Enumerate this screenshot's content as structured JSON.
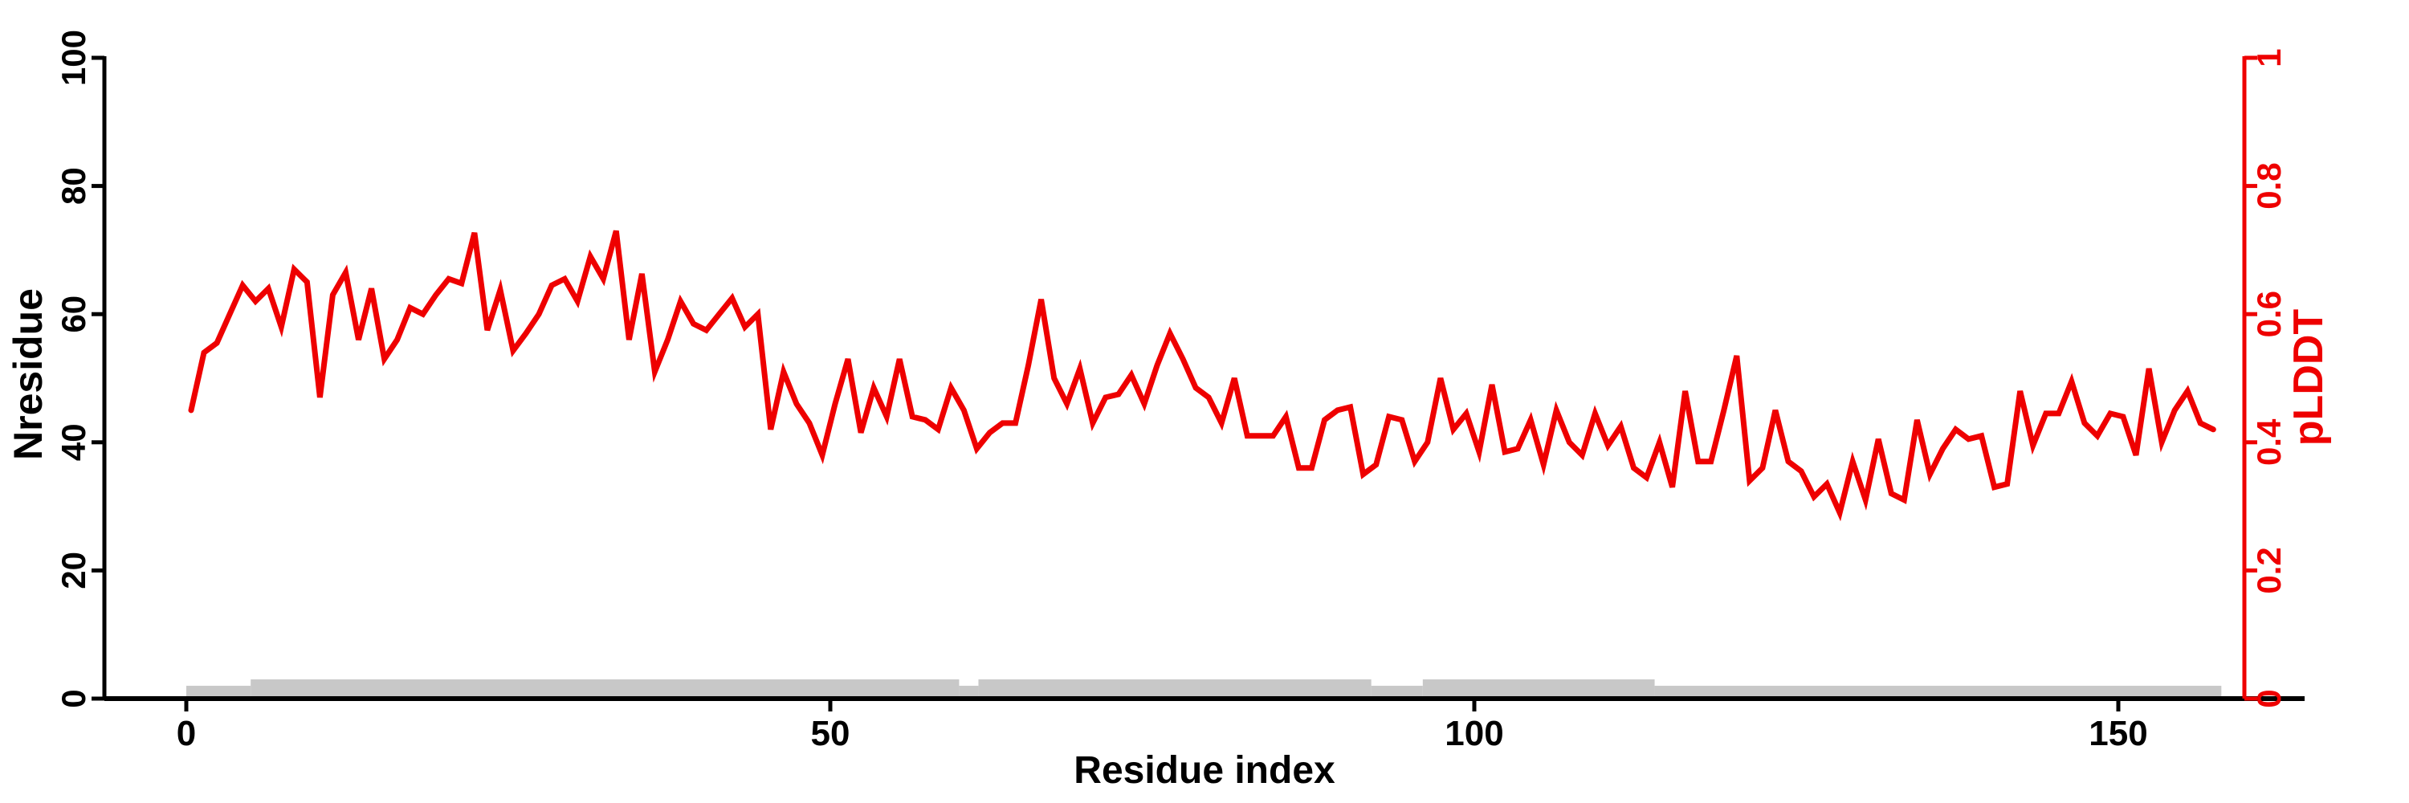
{
  "chart_data": {
    "type": "line",
    "title": "",
    "xlabel": "Residue index",
    "ylabel_left": "Nresidue",
    "ylabel_right": "pLDDT",
    "x_ticks": [
      0,
      50,
      100,
      150
    ],
    "left_ticks": [
      0,
      20,
      40,
      60,
      80,
      100
    ],
    "right_ticks": [
      0,
      0.2,
      0.4,
      0.6,
      0.8,
      1
    ],
    "left_ylim": [
      0,
      100
    ],
    "right_ylim": [
      0,
      1
    ],
    "xlim": [
      0,
      160
    ],
    "grid": false,
    "legend": "none",
    "colors": {
      "line": "#ee0000",
      "axis": "#000000",
      "bar": "#c8c8c8"
    },
    "series": [
      {
        "name": "pLDDT",
        "axis": "right",
        "color": "#ee0000",
        "x_start_residue": 1,
        "x_step": 1,
        "values": [
          0.45,
          0.54,
          0.555,
          0.6,
          0.645,
          0.62,
          0.64,
          0.58,
          0.67,
          0.65,
          0.47,
          0.63,
          0.665,
          0.56,
          0.64,
          0.53,
          0.56,
          0.61,
          0.6,
          0.63,
          0.655,
          0.648,
          0.727,
          0.575,
          0.638,
          0.543,
          0.57,
          0.6,
          0.645,
          0.655,
          0.62,
          0.69,
          0.655,
          0.73,
          0.56,
          0.663,
          0.51,
          0.56,
          0.62,
          0.585,
          0.575,
          0.6,
          0.625,
          0.58,
          0.6,
          0.42,
          0.51,
          0.46,
          0.43,
          0.38,
          0.46,
          0.53,
          0.415,
          0.485,
          0.44,
          0.53,
          0.44,
          0.435,
          0.42,
          0.485,
          0.45,
          0.39,
          0.415,
          0.43,
          0.43,
          0.52,
          0.623,
          0.5,
          0.46,
          0.515,
          0.43,
          0.47,
          0.475,
          0.505,
          0.46,
          0.52,
          0.57,
          0.53,
          0.485,
          0.47,
          0.43,
          0.5,
          0.41,
          0.41,
          0.41,
          0.44,
          0.36,
          0.36,
          0.435,
          0.45,
          0.455,
          0.35,
          0.365,
          0.44,
          0.435,
          0.37,
          0.4,
          0.5,
          0.42,
          0.445,
          0.385,
          0.49,
          0.385,
          0.39,
          0.435,
          0.365,
          0.45,
          0.4,
          0.38,
          0.445,
          0.395,
          0.425,
          0.36,
          0.345,
          0.4,
          0.33,
          0.48,
          0.37,
          0.37,
          0.45,
          0.535,
          0.34,
          0.36,
          0.45,
          0.37,
          0.355,
          0.315,
          0.335,
          0.29,
          0.37,
          0.31,
          0.405,
          0.32,
          0.31,
          0.435,
          0.35,
          0.39,
          0.42,
          0.405,
          0.41,
          0.33,
          0.335,
          0.48,
          0.395,
          0.445,
          0.445,
          0.495,
          0.43,
          0.41,
          0.445,
          0.44,
          0.38,
          0.515,
          0.4,
          0.45,
          0.48,
          0.43,
          0.42
        ]
      }
    ],
    "coverage_bar": {
      "name": "residue-coverage-bar",
      "color": "#c8c8c8",
      "units": "Nresidue",
      "segments": [
        {
          "from": 0,
          "to": 5,
          "height": 2
        },
        {
          "from": 5,
          "to": 60,
          "height": 3
        },
        {
          "from": 60,
          "to": 61.5,
          "height": 2
        },
        {
          "from": 61.5,
          "to": 92,
          "height": 3
        },
        {
          "from": 92,
          "to": 96,
          "height": 2
        },
        {
          "from": 96,
          "to": 114,
          "height": 3
        },
        {
          "from": 114,
          "to": 158,
          "height": 2
        }
      ]
    }
  }
}
